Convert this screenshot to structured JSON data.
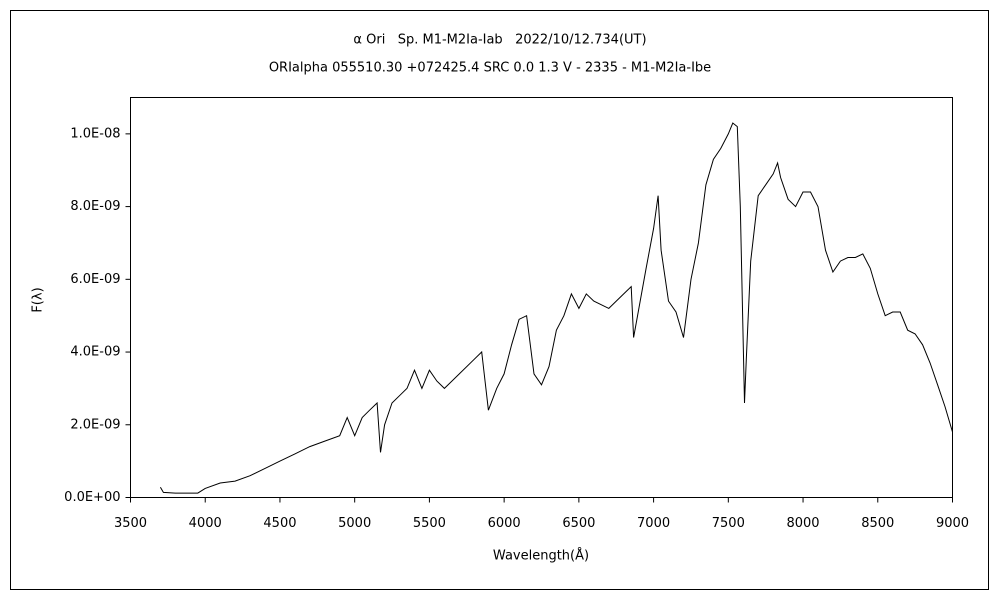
{
  "chart_data": {
    "type": "line",
    "title": "α Ori   Sp. M1-M2Ia-Iab   2022/10/12.734(UT)",
    "subtitle": "ORIalpha 055510.30 +072425.4 SRC 0.0 1.3 V - 2335 - M1-M2Ia-Ibe",
    "x_label": "Wavelength(Å)",
    "y_label": "F(λ)",
    "series": [
      {
        "name": "F(λ)",
        "color": "#000000",
        "x": [
          3700,
          3720,
          3800,
          3900,
          3950,
          4000,
          4100,
          4200,
          4300,
          4400,
          4500,
          4600,
          4700,
          4800,
          4900,
          4950,
          5000,
          5050,
          5100,
          5150,
          5173,
          5200,
          5250,
          5300,
          5350,
          5400,
          5450,
          5500,
          5550,
          5600,
          5700,
          5800,
          5850,
          5895,
          5950,
          6000,
          6050,
          6100,
          6150,
          6200,
          6250,
          6300,
          6350,
          6400,
          6450,
          6500,
          6550,
          6600,
          6700,
          6800,
          6850,
          6866,
          6950,
          7000,
          7030,
          7050,
          7100,
          7150,
          7200,
          7250,
          7300,
          7350,
          7400,
          7450,
          7500,
          7530,
          7560,
          7580,
          7608,
          7620,
          7650,
          7700,
          7750,
          7800,
          7830,
          7850,
          7900,
          7950,
          8000,
          8050,
          8100,
          8150,
          8200,
          8250,
          8300,
          8350,
          8400,
          8450,
          8500,
          8550,
          8600,
          8650,
          8700,
          8750,
          8800,
          8850,
          8900,
          8950,
          9000
        ],
        "values": [
          2.8e-10,
          1.4e-10,
          1.2e-10,
          1.2e-10,
          1.2e-10,
          2.5e-10,
          4e-10,
          4.5e-10,
          6e-10,
          8e-10,
          1e-09,
          1.2e-09,
          1.4e-09,
          1.55e-09,
          1.7e-09,
          2.2e-09,
          1.7e-09,
          2.2e-09,
          2.4e-09,
          2.6e-09,
          1.24e-09,
          2e-09,
          2.6e-09,
          2.8e-09,
          3e-09,
          3.5e-09,
          3e-09,
          3.5e-09,
          3.2e-09,
          3e-09,
          3.4e-09,
          3.8e-09,
          4e-09,
          2.4e-09,
          3e-09,
          3.4e-09,
          4.2e-09,
          4.9e-09,
          5e-09,
          3.4e-09,
          3.1e-09,
          3.6e-09,
          4.6e-09,
          5e-09,
          5.6e-09,
          5.2e-09,
          5.6e-09,
          5.4e-09,
          5.2e-09,
          5.6e-09,
          5.8e-09,
          4.4e-09,
          6.3e-09,
          7.4e-09,
          8.3e-09,
          6.8e-09,
          5.4e-09,
          5.1e-09,
          4.4e-09,
          6e-09,
          7e-09,
          8.6e-09,
          9.3e-09,
          9.6e-09,
          1e-08,
          1.03e-08,
          1.02e-08,
          8e-09,
          2.6e-09,
          3.8e-09,
          6.5e-09,
          8.3e-09,
          8.6e-09,
          8.9e-09,
          9.2e-09,
          8.8e-09,
          8.2e-09,
          8e-09,
          8.4e-09,
          8.4e-09,
          8e-09,
          6.8e-09,
          6.2e-09,
          6.5e-09,
          6.6e-09,
          6.6e-09,
          6.7e-09,
          6.3e-09,
          5.6e-09,
          5e-09,
          5.1e-09,
          5.1e-09,
          4.6e-09,
          4.5e-09,
          4.2e-09,
          3.7e-09,
          3.1e-09,
          2.5e-09,
          1.8e-09
        ]
      }
    ],
    "xlim": [
      3500,
      9000
    ],
    "xticks": [
      3500,
      4000,
      4500,
      5000,
      5500,
      6000,
      6500,
      7000,
      7500,
      8000,
      8500,
      9000
    ],
    "ylim": [
      0,
      1.1e-08
    ],
    "yticks": [
      {
        "value": 0,
        "label": "0.0E+00"
      },
      {
        "value": 2e-09,
        "label": "2.0E-09"
      },
      {
        "value": 4e-09,
        "label": "4.0E-09"
      },
      {
        "value": 6e-09,
        "label": "6.0E-09"
      },
      {
        "value": 8e-09,
        "label": "8.0E-09"
      },
      {
        "value": 1e-08,
        "label": "1.0E-08"
      }
    ],
    "grid": false
  }
}
